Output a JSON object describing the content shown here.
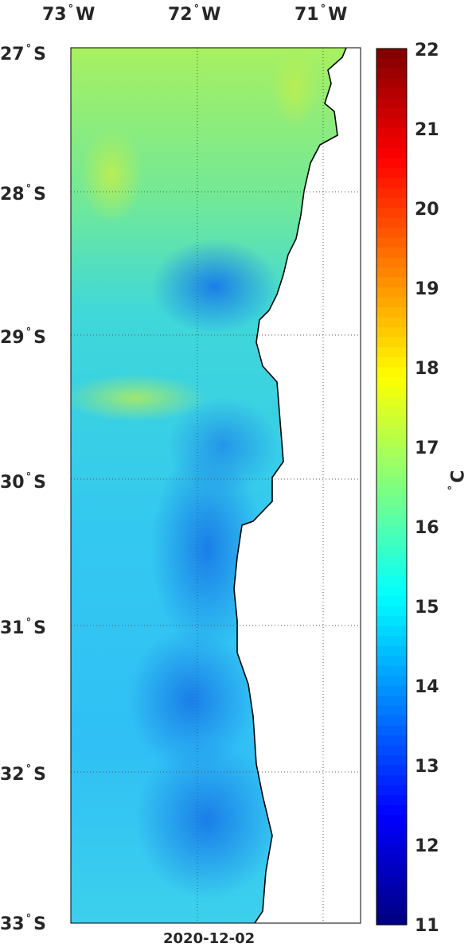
{
  "map": {
    "top_labels": [
      "73",
      "72",
      "71"
    ],
    "top_suffix": "W",
    "left_labels": [
      "27",
      "28",
      "29",
      "30",
      "31",
      "32",
      "33"
    ],
    "left_suffix": "S",
    "date": "2020-12-02",
    "lon_range": [
      -73,
      -70.7
    ],
    "lat_range": [
      -33,
      -27
    ],
    "palette": "jet",
    "ocean_dominant_color": "#1ea0ff",
    "land_color": "#ffffff",
    "coast_color": "#000000"
  },
  "colorbar": {
    "ticks": [
      "22",
      "21",
      "20",
      "19",
      "18",
      "17",
      "16",
      "15",
      "14",
      "13",
      "12",
      "11"
    ],
    "vmin": 11,
    "vmax": 22,
    "unit_symbol": "C"
  }
}
